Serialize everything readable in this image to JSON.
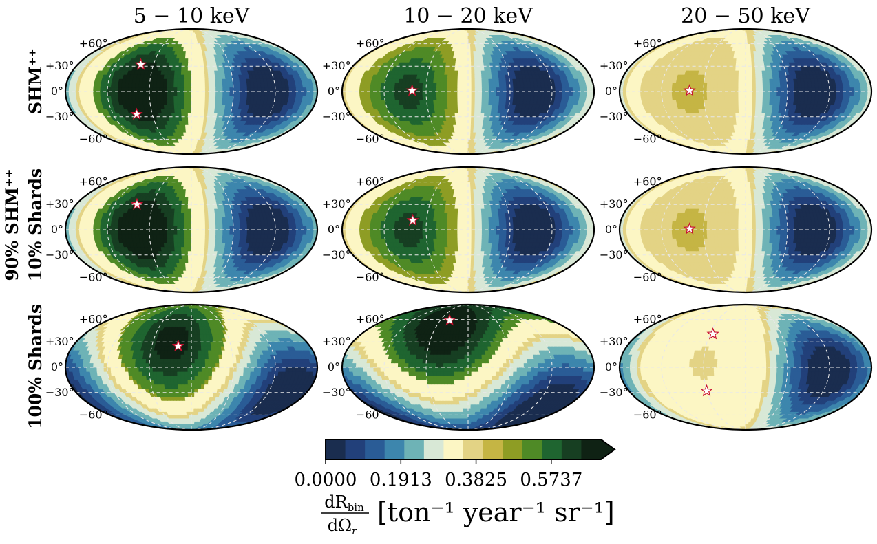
{
  "chart_data": {
    "type": "heatmap",
    "projection": "mollweide",
    "column_titles": [
      "5 − 10 keV",
      "10 − 20 keV",
      "20 − 50 keV"
    ],
    "row_labels": [
      [
        "SHM⁺⁺"
      ],
      [
        "90% SHM⁺⁺",
        "10% Shards"
      ],
      [
        "100% Shards"
      ]
    ],
    "latitude_labels": [
      "+60°",
      "+30°",
      "0°",
      "−30°",
      "−60°"
    ],
    "graticule": true,
    "colorbar": {
      "ticks": [
        "0.0000",
        "0.1913",
        "0.3825",
        "0.5737"
      ],
      "range": [
        0,
        0.7
      ],
      "extend": "max",
      "label_fraction_num": "dR",
      "label_fraction_num_sub": "bin",
      "label_fraction_den": "dΩ",
      "label_fraction_den_sub": "r",
      "label_units": "[ton⁻¹ year⁻¹ sr⁻¹]"
    },
    "palette": [
      "#1a2d4f",
      "#22407a",
      "#2a5c96",
      "#3d86ad",
      "#6eb3b6",
      "#d8e8d6",
      "#fcf6c4",
      "#e3d385",
      "#c5b544",
      "#8e9d24",
      "#4f8a26",
      "#1f6530",
      "#173f22",
      "#0f2214"
    ],
    "panels": [
      {
        "row": 0,
        "col": 0,
        "peak_lon": -70,
        "peak_lat": 0,
        "level": 0.72,
        "stars": [
          [
            -80,
            32
          ],
          [
            -84,
            -27
          ]
        ]
      },
      {
        "row": 0,
        "col": 1,
        "peak_lon": -85,
        "peak_lat": 0,
        "level": 0.62,
        "stars": [
          [
            -80,
            1
          ]
        ]
      },
      {
        "row": 0,
        "col": 2,
        "peak_lon": -80,
        "peak_lat": 0,
        "level": 0.42,
        "stars": [
          [
            -80,
            1
          ]
        ]
      },
      {
        "row": 1,
        "col": 0,
        "peak_lon": -70,
        "peak_lat": 0,
        "level": 0.72,
        "stars": [
          [
            -85,
            30
          ]
        ]
      },
      {
        "row": 1,
        "col": 1,
        "peak_lon": -85,
        "peak_lat": 0,
        "level": 0.62,
        "stars": [
          [
            -80,
            11
          ]
        ]
      },
      {
        "row": 1,
        "col": 2,
        "peak_lon": -80,
        "peak_lat": 0,
        "level": 0.42,
        "stars": [
          [
            -80,
            1
          ]
        ]
      },
      {
        "row": 2,
        "col": 0,
        "peak_lon": -30,
        "peak_lat": 30,
        "level": 0.68,
        "stars": [
          [
            -20,
            25
          ]
        ]
      },
      {
        "row": 2,
        "col": 1,
        "peak_lon": -40,
        "peak_lat": 50,
        "level": 0.72,
        "stars": [
          [
            -40,
            59
          ]
        ]
      },
      {
        "row": 2,
        "col": 2,
        "peak_lon": -60,
        "peak_lat": 5,
        "level": 0.36,
        "stars": [
          [
            -55,
            40
          ],
          [
            -60,
            -28
          ]
        ]
      }
    ]
  }
}
